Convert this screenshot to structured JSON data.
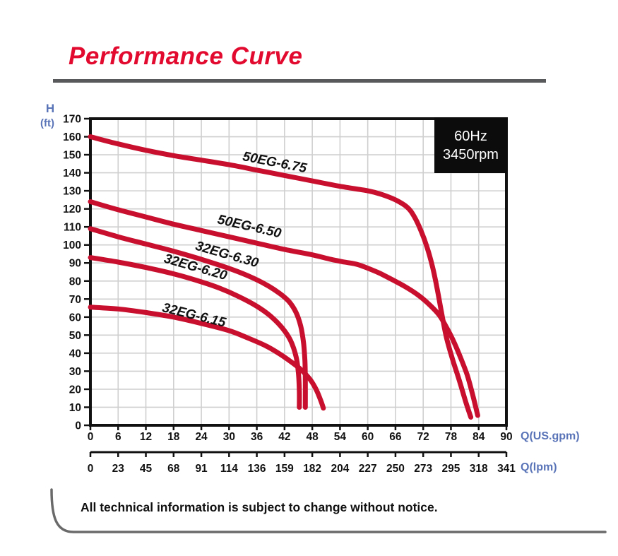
{
  "title": "Performance Curve",
  "badge": {
    "line1": "60Hz",
    "line2": "3450rpm"
  },
  "axes": {
    "y_label_line1": "H",
    "y_label_line2": "(ft)",
    "x_primary_label": "Q(US.gpm)",
    "x_secondary_label": "Q(lpm)"
  },
  "footer": {
    "note": "All technical information is subject to change without notice."
  },
  "colors": {
    "curve": "#c8102e",
    "title": "#e20a2e",
    "axis_label_blue": "#5a74b8",
    "grid": "#cfcfcf",
    "axis": "#111111",
    "badge_bg": "#0c0c0c",
    "badge_text": "#ffffff",
    "title_rule": "#58595b",
    "footer_line": "#6a6a6a"
  },
  "chart_data": {
    "type": "line",
    "title": "Performance Curve",
    "xlabel": "Q(US.gpm)",
    "x2label": "Q(lpm)",
    "ylabel": "H (ft)",
    "xlim": [
      0,
      90
    ],
    "ylim": [
      0,
      170
    ],
    "grid": true,
    "legend_position": "inline-curve-labels",
    "x_ticks_gpm": [
      0,
      6,
      12,
      18,
      24,
      30,
      36,
      42,
      48,
      54,
      60,
      66,
      72,
      78,
      84,
      90
    ],
    "x_ticks_lpm": [
      0,
      23,
      45,
      68,
      91,
      114,
      136,
      159,
      182,
      204,
      227,
      250,
      273,
      295,
      318,
      341
    ],
    "y_ticks": [
      0,
      10,
      20,
      30,
      40,
      50,
      60,
      70,
      80,
      90,
      100,
      110,
      120,
      130,
      140,
      150,
      160,
      170
    ],
    "series": [
      {
        "name": "50EG-6.75",
        "label": {
          "x": 39.7,
          "y": 143.5,
          "angle": 11
        },
        "points": [
          [
            0,
            160
          ],
          [
            6,
            156
          ],
          [
            12,
            152.5
          ],
          [
            18,
            149.5
          ],
          [
            24,
            147
          ],
          [
            30,
            144.5
          ],
          [
            36,
            141.5
          ],
          [
            42,
            138.5
          ],
          [
            48,
            135.5
          ],
          [
            54,
            132.5
          ],
          [
            60,
            130
          ],
          [
            63,
            128
          ],
          [
            66,
            125
          ],
          [
            68.5,
            121
          ],
          [
            70,
            116
          ],
          [
            71.5,
            108
          ],
          [
            72.8,
            99
          ],
          [
            74,
            88
          ],
          [
            75,
            76
          ],
          [
            76,
            62
          ],
          [
            77,
            49
          ],
          [
            78.3,
            37
          ],
          [
            79.8,
            25
          ],
          [
            81.2,
            13
          ],
          [
            82.3,
            4.5
          ]
        ]
      },
      {
        "name": "50EG-6.50",
        "label": {
          "x": 34.2,
          "y": 108,
          "angle": 13
        },
        "points": [
          [
            0,
            124
          ],
          [
            6,
            119.5
          ],
          [
            12,
            115.5
          ],
          [
            18,
            111.5
          ],
          [
            24,
            108
          ],
          [
            30,
            104.5
          ],
          [
            36,
            101
          ],
          [
            42,
            97.5
          ],
          [
            48,
            94.5
          ],
          [
            52,
            92
          ],
          [
            55,
            90.5
          ],
          [
            58,
            89
          ],
          [
            62,
            85
          ],
          [
            64,
            82.5
          ],
          [
            68,
            77
          ],
          [
            71,
            72
          ],
          [
            73.5,
            66.5
          ],
          [
            75.5,
            61
          ],
          [
            77,
            54.5
          ],
          [
            78.5,
            47
          ],
          [
            80,
            38
          ],
          [
            81.5,
            28
          ],
          [
            82.7,
            17
          ],
          [
            83.8,
            5.5
          ]
        ]
      },
      {
        "name": "32EG-6.30",
        "label": {
          "x": 29.3,
          "y": 92.5,
          "angle": 16
        },
        "points": [
          [
            0,
            109
          ],
          [
            6,
            104.5
          ],
          [
            12,
            100.5
          ],
          [
            18,
            96.5
          ],
          [
            24,
            92
          ],
          [
            30,
            87
          ],
          [
            34,
            83
          ],
          [
            38,
            78
          ],
          [
            41,
            73
          ],
          [
            43,
            68.5
          ],
          [
            44.5,
            62.5
          ],
          [
            45.5,
            55
          ],
          [
            46.1,
            46
          ],
          [
            46.4,
            36
          ],
          [
            46.5,
            25
          ],
          [
            46.5,
            10
          ]
        ]
      },
      {
        "name": "32EG-6.20",
        "label": {
          "x": 22.5,
          "y": 85.5,
          "angle": 16
        },
        "points": [
          [
            0,
            93
          ],
          [
            6,
            90.5
          ],
          [
            12,
            87.5
          ],
          [
            18,
            84
          ],
          [
            24,
            79.5
          ],
          [
            28,
            76
          ],
          [
            32,
            71.5
          ],
          [
            36,
            66
          ],
          [
            39,
            60.5
          ],
          [
            41.5,
            54
          ],
          [
            43.3,
            47
          ],
          [
            44.5,
            38
          ],
          [
            45,
            29
          ],
          [
            45.2,
            19
          ],
          [
            45.2,
            10
          ]
        ]
      },
      {
        "name": "32EG-6.15",
        "label": {
          "x": 22.2,
          "y": 58.8,
          "angle": 14
        },
        "points": [
          [
            0,
            65.5
          ],
          [
            6,
            64.5
          ],
          [
            12,
            62.5
          ],
          [
            18,
            60
          ],
          [
            24,
            56.5
          ],
          [
            30,
            52.5
          ],
          [
            34,
            48.5
          ],
          [
            38,
            44
          ],
          [
            41,
            39.5
          ],
          [
            43.5,
            35
          ],
          [
            45.5,
            31
          ],
          [
            47.5,
            25.5
          ],
          [
            48.8,
            20
          ],
          [
            49.8,
            14
          ],
          [
            50.4,
            9.5
          ]
        ]
      }
    ]
  }
}
